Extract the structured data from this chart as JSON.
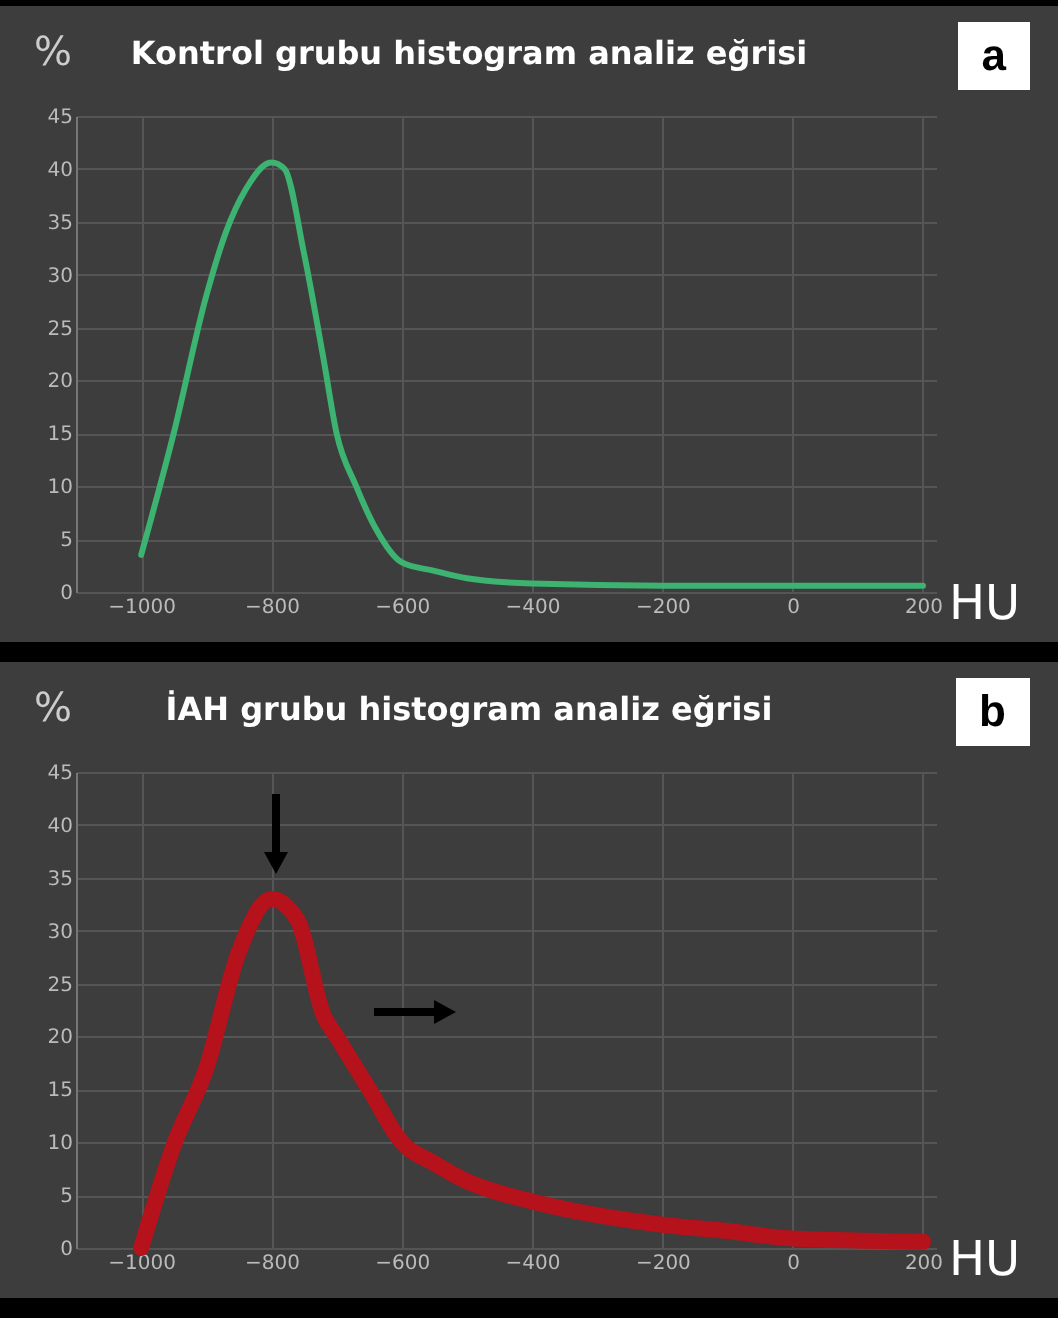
{
  "chart_data": [
    {
      "type": "line",
      "title": "Kontrol grubu histogram analiz eğrisi",
      "xlabel": "HU",
      "ylabel": "%",
      "annotations": [
        "a"
      ],
      "grid": true,
      "x": [
        -1000,
        -950,
        -900,
        -870,
        -840,
        -800,
        -780,
        -750,
        -720,
        -700,
        -670,
        -640,
        -600,
        -550,
        -500,
        -400,
        -200,
        0,
        200
      ],
      "series": [
        {
          "color": "#3cb371",
          "values": [
            3.5,
            15,
            28,
            34,
            38,
            40.6,
            40,
            32,
            22,
            15,
            10,
            6,
            2.8,
            2,
            1.3,
            0.8,
            0.6,
            0.6,
            0.6
          ]
        }
      ],
      "xlim": [
        -1100,
        220
      ],
      "ylim": [
        0,
        45
      ],
      "xticks": [
        -1000,
        -800,
        -600,
        -400,
        -200,
        0,
        200
      ],
      "yticks": [
        0,
        5,
        10,
        15,
        20,
        25,
        30,
        35,
        40,
        45
      ]
    },
    {
      "type": "line",
      "title": "İAH grubu histogram analiz eğrisi",
      "xlabel": "HU",
      "ylabel": "%",
      "annotations": [
        "b"
      ],
      "grid": true,
      "x": [
        -1000,
        -950,
        -900,
        -850,
        -800,
        -760,
        -720,
        -700,
        -650,
        -600,
        -550,
        -500,
        -400,
        -300,
        -200,
        -100,
        0,
        200
      ],
      "series": [
        {
          "color": "#b5121b",
          "values": [
            0,
            9.7,
            17,
            28,
            33,
            31,
            22,
            20,
            15,
            10,
            8,
            6.3,
            4.4,
            3.1,
            2.2,
            1.6,
            0.9,
            0.6
          ]
        }
      ],
      "xlim": [
        -1100,
        220
      ],
      "ylim": [
        0,
        45
      ],
      "xticks": [
        -1000,
        -800,
        -600,
        -400,
        -200,
        0,
        200
      ],
      "yticks": [
        0,
        5,
        10,
        15,
        20,
        25,
        30,
        35,
        40,
        45
      ]
    }
  ]
}
